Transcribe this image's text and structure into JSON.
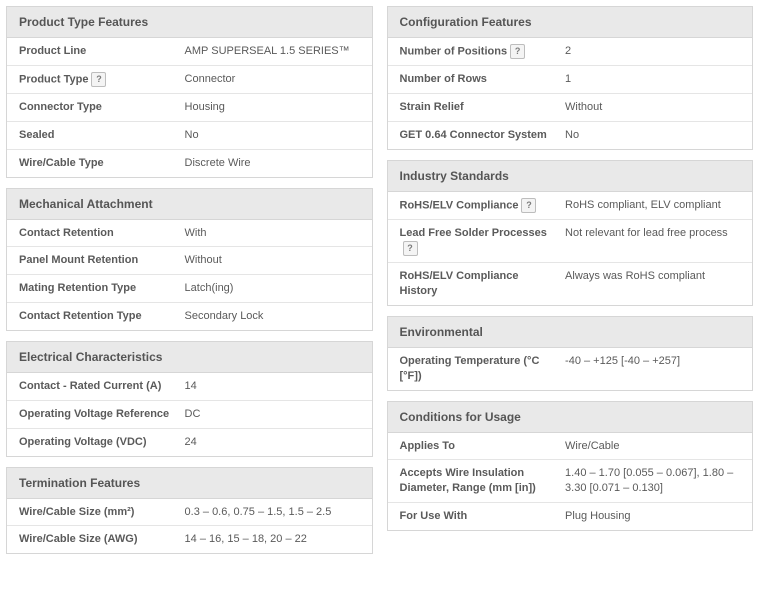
{
  "left": [
    {
      "title": "Product Type Features",
      "rows": [
        {
          "label": "Product Line",
          "value": "AMP SUPERSEAL 1.5 SERIES™",
          "help": false
        },
        {
          "label": "Product Type",
          "value": "Connector",
          "help": true
        },
        {
          "label": "Connector Type",
          "value": "Housing",
          "help": false
        },
        {
          "label": "Sealed",
          "value": "No",
          "help": false
        },
        {
          "label": "Wire/Cable Type",
          "value": "Discrete Wire",
          "help": false
        }
      ]
    },
    {
      "title": "Mechanical Attachment",
      "rows": [
        {
          "label": "Contact Retention",
          "value": "With",
          "help": false
        },
        {
          "label": "Panel Mount Retention",
          "value": "Without",
          "help": false
        },
        {
          "label": "Mating Retention Type",
          "value": "Latch(ing)",
          "help": false
        },
        {
          "label": "Contact Retention Type",
          "value": "Secondary Lock",
          "help": false
        }
      ]
    },
    {
      "title": "Electrical Characteristics",
      "rows": [
        {
          "label": "Contact - Rated Current (A)",
          "value": "14",
          "help": false
        },
        {
          "label": "Operating Voltage Reference",
          "value": "DC",
          "help": false
        },
        {
          "label": "Operating Voltage (VDC)",
          "value": "24",
          "help": false
        }
      ]
    },
    {
      "title": "Termination Features",
      "rows": [
        {
          "label": "Wire/Cable Size (mm²)",
          "value": "0.3 – 0.6, 0.75 – 1.5, 1.5 – 2.5",
          "help": false
        },
        {
          "label": "Wire/Cable Size (AWG)",
          "value": "14 – 16, 15 – 18, 20 – 22",
          "help": false
        }
      ]
    }
  ],
  "right": [
    {
      "title": "Configuration Features",
      "rows": [
        {
          "label": "Number of Positions",
          "value": "2",
          "help": true
        },
        {
          "label": "Number of Rows",
          "value": "1",
          "help": false
        },
        {
          "label": "Strain Relief",
          "value": "Without",
          "help": false
        },
        {
          "label": "GET 0.64 Connector System",
          "value": "No",
          "help": false
        }
      ]
    },
    {
      "title": "Industry Standards",
      "rows": [
        {
          "label": "RoHS/ELV Compliance",
          "value": "RoHS compliant, ELV compliant",
          "help": true
        },
        {
          "label": "Lead Free Solder Processes",
          "value": "Not relevant for lead free process",
          "help": true
        },
        {
          "label": "RoHS/ELV Compliance History",
          "value": "Always was RoHS compliant",
          "help": false
        }
      ]
    },
    {
      "title": "Environmental",
      "rows": [
        {
          "label": "Operating Temperature (°C [°F])",
          "value": "-40 – +125 [-40 – +257]",
          "help": false
        }
      ]
    },
    {
      "title": "Conditions for Usage",
      "rows": [
        {
          "label": "Applies To",
          "value": "Wire/Cable",
          "help": false
        },
        {
          "label": "Accepts Wire Insulation Diameter, Range (mm [in])",
          "value": "1.40 – 1.70 [0.055 – 0.067], 1.80 – 3.30 [0.071 – 0.130]",
          "help": false
        },
        {
          "label": "For Use With",
          "value": "Plug Housing",
          "help": false
        }
      ]
    }
  ],
  "help_char": "?",
  "colors": {
    "header_bg": "#e9e9e9",
    "border": "#d6d6d6",
    "row_border": "#e5e5e5",
    "text": "#5a5a5a"
  },
  "font_sizes": {
    "body": 11,
    "header": 12
  }
}
